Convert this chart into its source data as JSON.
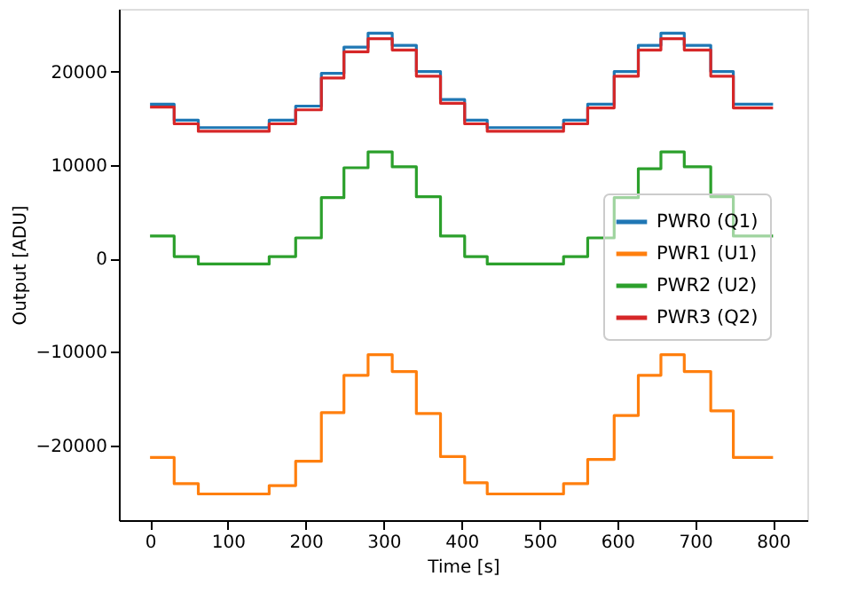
{
  "chart_data": {
    "type": "step",
    "xlabel": "Time [s]",
    "ylabel": "Output [ADU]",
    "x": [
      0,
      31,
      62,
      153,
      187,
      220,
      249,
      280,
      311,
      342,
      373,
      404,
      433,
      531,
      562,
      596,
      627,
      656,
      686,
      720,
      749,
      800
    ],
    "series": [
      {
        "name": "PWR0 (Q1)",
        "color": "#1f77b4",
        "values": [
          16500,
          14800,
          14000,
          14800,
          16300,
          19800,
          22600,
          24100,
          22800,
          20000,
          17000,
          14800,
          14000,
          14800,
          16500,
          20000,
          22800,
          24100,
          22800,
          20000,
          16500,
          16500
        ]
      },
      {
        "name": "PWR1 (U1)",
        "color": "#ff7f0e",
        "values": [
          -21300,
          -24100,
          -25200,
          -24300,
          -21700,
          -16500,
          -12500,
          -10300,
          -12100,
          -16600,
          -21200,
          -24000,
          -25200,
          -24100,
          -21500,
          -16800,
          -12500,
          -10300,
          -12100,
          -16300,
          -21300,
          -21300
        ]
      },
      {
        "name": "PWR2 (U2)",
        "color": "#2ca02c",
        "values": [
          2400,
          200,
          -600,
          200,
          2200,
          6500,
          9700,
          11400,
          9800,
          6600,
          2400,
          200,
          -600,
          200,
          2200,
          6500,
          9600,
          11400,
          9800,
          6600,
          2400,
          2400
        ]
      },
      {
        "name": "PWR3 (Q2)",
        "color": "#d62728",
        "values": [
          16200,
          14400,
          13600,
          14400,
          15900,
          19300,
          22100,
          23500,
          22300,
          19500,
          16600,
          14400,
          13600,
          14400,
          16100,
          19500,
          22300,
          23500,
          22300,
          19500,
          16100,
          16100
        ]
      }
    ],
    "xlim": [
      -40,
      844
    ],
    "ylim": [
      -28000,
      26700
    ],
    "xticks": [
      0,
      100,
      200,
      300,
      400,
      500,
      600,
      700,
      800
    ],
    "yticks": [
      -20000,
      -10000,
      0,
      10000,
      20000
    ],
    "legend": "right",
    "grid": false
  }
}
